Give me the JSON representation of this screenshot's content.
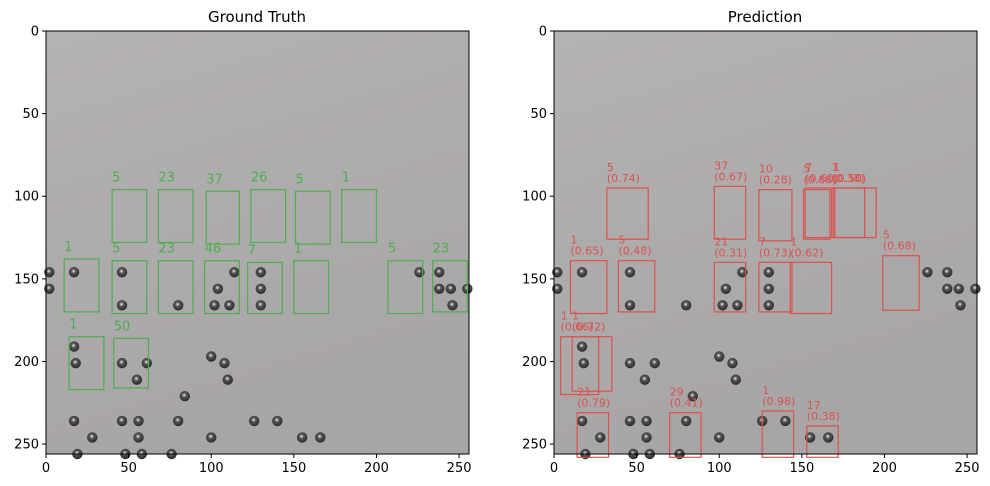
{
  "chart_data": [
    {
      "type": "image-annotation",
      "title": "Ground Truth",
      "xlim": [
        0,
        256
      ],
      "ylim": [
        256,
        0
      ],
      "xticks": [
        0,
        50,
        100,
        150,
        200,
        250
      ],
      "yticks": [
        0,
        50,
        100,
        150,
        200,
        250
      ],
      "box_color": "#4caf50",
      "boxes": [
        {
          "label": "5",
          "x0": 40,
          "y0": 96,
          "x1": 61,
          "y1": 128
        },
        {
          "label": "23",
          "x0": 68,
          "y0": 96,
          "x1": 89,
          "y1": 128
        },
        {
          "label": "37",
          "x0": 97,
          "y0": 97,
          "x1": 117,
          "y1": 129
        },
        {
          "label": "26",
          "x0": 124,
          "y0": 96,
          "x1": 145,
          "y1": 128
        },
        {
          "label": "5",
          "x0": 151,
          "y0": 97,
          "x1": 172,
          "y1": 129
        },
        {
          "label": "1",
          "x0": 179,
          "y0": 96,
          "x1": 200,
          "y1": 128
        },
        {
          "label": "1",
          "x0": 11,
          "y0": 138,
          "x1": 32,
          "y1": 170
        },
        {
          "label": "5",
          "x0": 40,
          "y0": 139,
          "x1": 61,
          "y1": 171
        },
        {
          "label": "23",
          "x0": 68,
          "y0": 139,
          "x1": 89,
          "y1": 171
        },
        {
          "label": "46",
          "x0": 96,
          "y0": 139,
          "x1": 117,
          "y1": 171
        },
        {
          "label": "7",
          "x0": 122,
          "y0": 140,
          "x1": 143,
          "y1": 171
        },
        {
          "label": "1",
          "x0": 150,
          "y0": 139,
          "x1": 171,
          "y1": 171
        },
        {
          "label": "5",
          "x0": 207,
          "y0": 139,
          "x1": 228,
          "y1": 171
        },
        {
          "label": "23",
          "x0": 234,
          "y0": 139,
          "x1": 255,
          "y1": 170
        },
        {
          "label": "1",
          "x0": 14,
          "y0": 185,
          "x1": 35,
          "y1": 217
        },
        {
          "label": "50",
          "x0": 41,
          "y0": 186,
          "x1": 62,
          "y1": 216
        }
      ]
    },
    {
      "type": "image-annotation",
      "title": "Prediction",
      "xlim": [
        0,
        256
      ],
      "ylim": [
        256,
        0
      ],
      "xticks": [
        0,
        50,
        100,
        150,
        200,
        250
      ],
      "yticks": [
        0,
        50,
        100,
        150,
        200,
        250
      ],
      "box_color": "#d9534f",
      "boxes": [
        {
          "label": "5",
          "score": "(0.74)",
          "x0": 32,
          "y0": 95,
          "x1": 57,
          "y1": 126
        },
        {
          "label": "37",
          "score": "(0.67)",
          "x0": 97,
          "y0": 94,
          "x1": 116,
          "y1": 126
        },
        {
          "label": "10",
          "score": "(0.28)",
          "x0": 124,
          "y0": 96,
          "x1": 144,
          "y1": 127
        },
        {
          "label": "5",
          "score": "(0.68)",
          "x0": 151,
          "y0": 96,
          "x1": 167,
          "y1": 126
        },
        {
          "label": "7",
          "score": "(0.60)",
          "x0": 152,
          "y0": 95,
          "x1": 170,
          "y1": 125
        },
        {
          "label": "1",
          "score": "(0.50)",
          "x0": 169,
          "y0": 95,
          "x1": 195,
          "y1": 125
        },
        {
          "label": "1",
          "score": "(0.38)",
          "x0": 168,
          "y0": 95,
          "x1": 188,
          "y1": 125
        },
        {
          "label": "1",
          "score": "(0.65)",
          "x0": 10,
          "y0": 139,
          "x1": 32,
          "y1": 171
        },
        {
          "label": "5",
          "score": "(0.48)",
          "x0": 39,
          "y0": 139,
          "x1": 61,
          "y1": 170
        },
        {
          "label": "21",
          "score": "(0.31)",
          "x0": 97,
          "y0": 140,
          "x1": 116,
          "y1": 170
        },
        {
          "label": "7",
          "score": "(0.73)",
          "x0": 124,
          "y0": 140,
          "x1": 144,
          "y1": 170
        },
        {
          "label": "1",
          "score": "(0.62)",
          "x0": 143,
          "y0": 140,
          "x1": 168,
          "y1": 171
        },
        {
          "label": "5",
          "score": "(0.68)",
          "x0": 199,
          "y0": 136,
          "x1": 221,
          "y1": 169
        },
        {
          "label": "1",
          "score": "(0.66)",
          "x0": 4,
          "y0": 185,
          "x1": 27,
          "y1": 220
        },
        {
          "label": "1",
          "score": "(0.72)",
          "x0": 11,
          "y0": 185,
          "x1": 35,
          "y1": 218
        },
        {
          "label": "21",
          "score": "(0.79)",
          "x0": 14,
          "y0": 231,
          "x1": 33,
          "y1": 258
        },
        {
          "label": "29",
          "score": "(0.41)",
          "x0": 70,
          "y0": 231,
          "x1": 89,
          "y1": 258
        },
        {
          "label": "1",
          "score": "(0.98)",
          "x0": 126,
          "y0": 230,
          "x1": 145,
          "y1": 258
        },
        {
          "label": "17",
          "score": "(0.38)",
          "x0": 153,
          "y0": 239,
          "x1": 172,
          "y1": 258
        }
      ]
    }
  ]
}
